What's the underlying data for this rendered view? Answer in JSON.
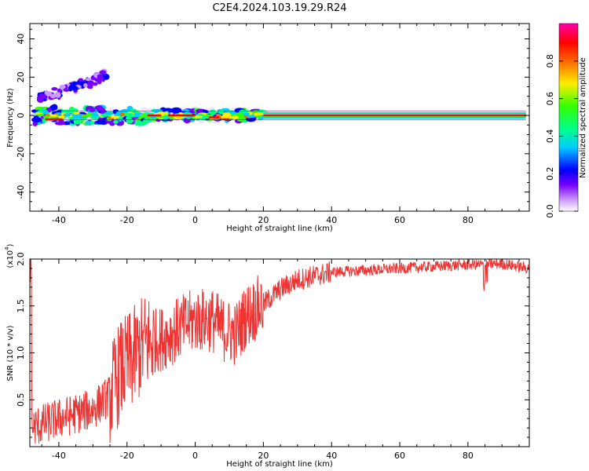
{
  "title": "C2E4.2024.103.19.29.R24",
  "chart_data": [
    {
      "type": "heatmap",
      "xlabel": "Height of straight line (km)",
      "ylabel": "Frequency (Hz)",
      "xlim": [
        -48.5,
        98
      ],
      "ylim": [
        -50,
        48
      ],
      "xticks": [
        -40,
        -20,
        0,
        20,
        40,
        60,
        80
      ],
      "yticks": [
        -40,
        -20,
        0,
        20,
        40
      ],
      "colorbar": {
        "label": "Normalized spectral amplitude",
        "range": [
          0,
          1
        ],
        "ticks": [
          "0.0",
          "0.2",
          "0.4",
          "0.6",
          "0.8"
        ],
        "colormap": [
          "#ffffff",
          "#cc99ff",
          "#7700ff",
          "#0000ff",
          "#00ccff",
          "#00ff88",
          "#33ff00",
          "#ffee00",
          "#ff6600",
          "#ff0000",
          "#ff00aa"
        ]
      },
      "features": [
        {
          "name": "main-band",
          "x_start": -46,
          "x_end": 97,
          "freq": 0,
          "width_hz": 1.8
        },
        {
          "name": "noise-band",
          "x_start": -46,
          "x_end": 20,
          "freq_spread_hz": 5
        },
        {
          "name": "oblique-trace",
          "points": [
            [
              -47,
              9
            ],
            [
              -40,
              12
            ],
            [
              -33,
              16
            ],
            [
              -26,
              21
            ]
          ]
        }
      ]
    },
    {
      "type": "line",
      "xlabel": "Height of straight line (km)",
      "ylabel": "SNR (10 * v/v)",
      "yscale_label": "(x10",
      "yscale_exp": "4",
      "y_multiplier": 10000,
      "xlim": [
        -48.5,
        98
      ],
      "ylim": [
        0,
        2.0
      ],
      "xticks": [
        -40,
        -20,
        0,
        20,
        40,
        60,
        80
      ],
      "yticks": [
        0.5,
        1.0,
        1.5,
        2.0
      ],
      "ytick_labels": [
        "0.5",
        "1.0",
        "1.5",
        "2.0"
      ],
      "color": "#ee3333",
      "envelope": {
        "x": [
          -48,
          -40,
          -30,
          -25,
          -22,
          -18,
          -15,
          -10,
          -5,
          0,
          5,
          8,
          12,
          15,
          20,
          25,
          30,
          40,
          50,
          60,
          70,
          80,
          90,
          98
        ],
        "y": [
          0.2,
          0.3,
          0.4,
          0.55,
          0.8,
          0.95,
          1.1,
          1.15,
          1.25,
          1.35,
          1.35,
          1.25,
          1.2,
          1.4,
          1.52,
          1.68,
          1.78,
          1.86,
          1.88,
          1.9,
          1.92,
          1.94,
          1.95,
          1.9
        ]
      }
    }
  ]
}
